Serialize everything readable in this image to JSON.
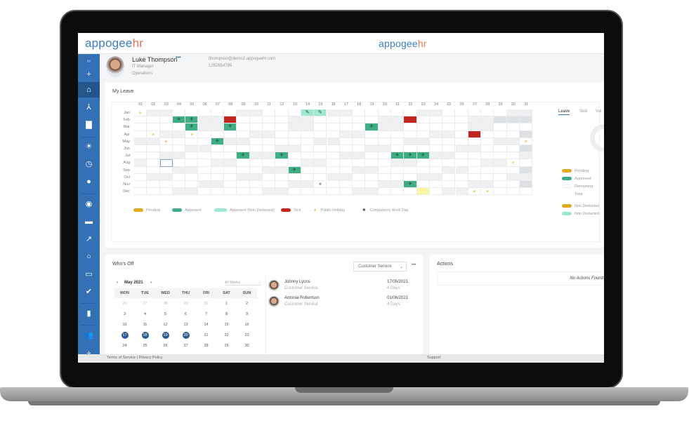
{
  "app": {
    "logo_main": "appogee",
    "logo_accent": "hr",
    "colors": {
      "brand": "#3470b4",
      "accent": "#e8735a",
      "approved": "#3fae84",
      "non_deducted": "#9ee8d0",
      "sick": "#c0271f",
      "pending": "#e2ab1e",
      "holiday": "#f2c94c"
    }
  },
  "sidebar": {
    "items": [
      {
        "icon": "collapse-icon",
        "glyph": "‹›"
      },
      {
        "icon": "plus-icon",
        "glyph": "+"
      },
      {
        "icon": "home-icon",
        "glyph": "⌂",
        "active": true
      },
      {
        "icon": "org-chart-icon",
        "glyph": "⅄"
      },
      {
        "icon": "document-icon",
        "glyph": "▇"
      },
      {
        "icon": "sun-icon",
        "glyph": "☀"
      },
      {
        "icon": "clock-icon",
        "glyph": "◷"
      },
      {
        "icon": "location-pin-icon",
        "glyph": "●"
      },
      {
        "icon": "face-icon",
        "glyph": "◉"
      },
      {
        "icon": "briefcase-icon",
        "glyph": "▬"
      },
      {
        "icon": "trend-icon",
        "glyph": "↗"
      },
      {
        "icon": "lightbulb-icon",
        "glyph": "○"
      },
      {
        "icon": "devices-icon",
        "glyph": "▭"
      },
      {
        "icon": "check-circle-icon",
        "glyph": "✔"
      },
      {
        "icon": "bar-chart-icon",
        "glyph": "▮"
      },
      {
        "icon": "people-icon",
        "glyph": "👥"
      },
      {
        "icon": "add-user-icon",
        "glyph": "+"
      }
    ]
  },
  "profile": {
    "name": "Luke Thompson",
    "more": "•••",
    "role": "IT Manager",
    "department": "Operations",
    "email": "lthompson@demo2.appogeehr.com",
    "phone": "1252654789"
  },
  "my_leave": {
    "title": "My Leave",
    "days": [
      "01",
      "02",
      "03",
      "04",
      "05",
      "06",
      "07",
      "08",
      "09",
      "10",
      "11",
      "12",
      "13",
      "14",
      "15",
      "16",
      "17",
      "18",
      "19",
      "20",
      "21",
      "22",
      "23",
      "24",
      "25",
      "26",
      "27",
      "28",
      "29",
      "30",
      "31"
    ],
    "months": [
      "Jan",
      "Feb",
      "Mar",
      "Apr",
      "May",
      "Jun",
      "Jul",
      "Aug",
      "Sep",
      "Oct",
      "Nov",
      "Dec"
    ],
    "entries": [
      {
        "m": 0,
        "d": 1,
        "t": "holiday"
      },
      {
        "m": 0,
        "d": 14,
        "t": "nondeducted"
      },
      {
        "m": 0,
        "d": 15,
        "t": "nondeducted"
      },
      {
        "m": 1,
        "d": 4,
        "t": "approved"
      },
      {
        "m": 1,
        "d": 5,
        "t": "approved"
      },
      {
        "m": 1,
        "d": 8,
        "t": "sick"
      },
      {
        "m": 1,
        "d": 22,
        "t": "sick"
      },
      {
        "m": 2,
        "d": 5,
        "t": "approved"
      },
      {
        "m": 2,
        "d": 8,
        "t": "approved"
      },
      {
        "m": 2,
        "d": 19,
        "t": "approved"
      },
      {
        "m": 3,
        "d": 2,
        "t": "holiday"
      },
      {
        "m": 3,
        "d": 5,
        "t": "holiday"
      },
      {
        "m": 3,
        "d": 27,
        "t": "sick"
      },
      {
        "m": 4,
        "d": 3,
        "t": "holiday"
      },
      {
        "m": 4,
        "d": 7,
        "t": "approved"
      },
      {
        "m": 4,
        "d": 31,
        "t": "holiday"
      },
      {
        "m": 6,
        "d": 9,
        "t": "approved"
      },
      {
        "m": 6,
        "d": 12,
        "t": "approved"
      },
      {
        "m": 6,
        "d": 21,
        "t": "approved"
      },
      {
        "m": 6,
        "d": 22,
        "t": "approved"
      },
      {
        "m": 6,
        "d": 23,
        "t": "approved"
      },
      {
        "m": 7,
        "d": 3,
        "t": "selected"
      },
      {
        "m": 7,
        "d": 30,
        "t": "holiday"
      },
      {
        "m": 8,
        "d": 13,
        "t": "approved"
      },
      {
        "m": 10,
        "d": 15,
        "t": "compulsory"
      },
      {
        "m": 10,
        "d": 22,
        "t": "approved"
      },
      {
        "m": 11,
        "d": 23,
        "t": "today"
      },
      {
        "m": 11,
        "d": 27,
        "t": "holiday"
      },
      {
        "m": 11,
        "d": 28,
        "t": "holiday"
      }
    ],
    "legend": [
      "Pending",
      "Approved",
      "Approved (Non Deducted)",
      "Sick",
      "Public Holiday",
      "Compulsory Work Day"
    ],
    "tabs": [
      "Leave",
      "Sick",
      "Vol"
    ],
    "summary": [
      "Pending",
      "Approved",
      "Remaining",
      "Total"
    ],
    "summary2": [
      "Non Deducted",
      "Non Deducted"
    ]
  },
  "whos_off": {
    "title": "Who's Off",
    "filter": "Customer Service",
    "more": "•••",
    "month": "May 2021",
    "weeks": "All Weeks",
    "weekdays": [
      "MON",
      "TUE",
      "WED",
      "THU",
      "FRI",
      "SAT",
      "SUN"
    ],
    "weeks_rows": [
      [
        "26",
        "27",
        "28",
        "29",
        "30",
        "1",
        "2"
      ],
      [
        "3",
        "4",
        "5",
        "6",
        "7",
        "8",
        "9"
      ],
      [
        "10",
        "11",
        "12",
        "13",
        "14",
        "15",
        "16"
      ],
      [
        "17",
        "18",
        "19",
        "20",
        "21",
        "22",
        "23"
      ],
      [
        "24",
        "25",
        "26",
        "27",
        "28",
        "29",
        "30"
      ]
    ],
    "highlighted": [
      "17",
      "18",
      "19",
      "20"
    ],
    "people": [
      {
        "name": "Johnny Lyons",
        "dept": "Customer Service",
        "date": "17/05/2021",
        "duration": "4 Days"
      },
      {
        "name": "Antonia Robertson",
        "dept": "Customer Service",
        "date": "01/06/2021",
        "duration": "4 Days"
      }
    ]
  },
  "actions": {
    "title": "Actions",
    "empty": "No Actions Found"
  },
  "footer": {
    "links": "Terms of Service | Privacy Policy",
    "support": "Support"
  }
}
